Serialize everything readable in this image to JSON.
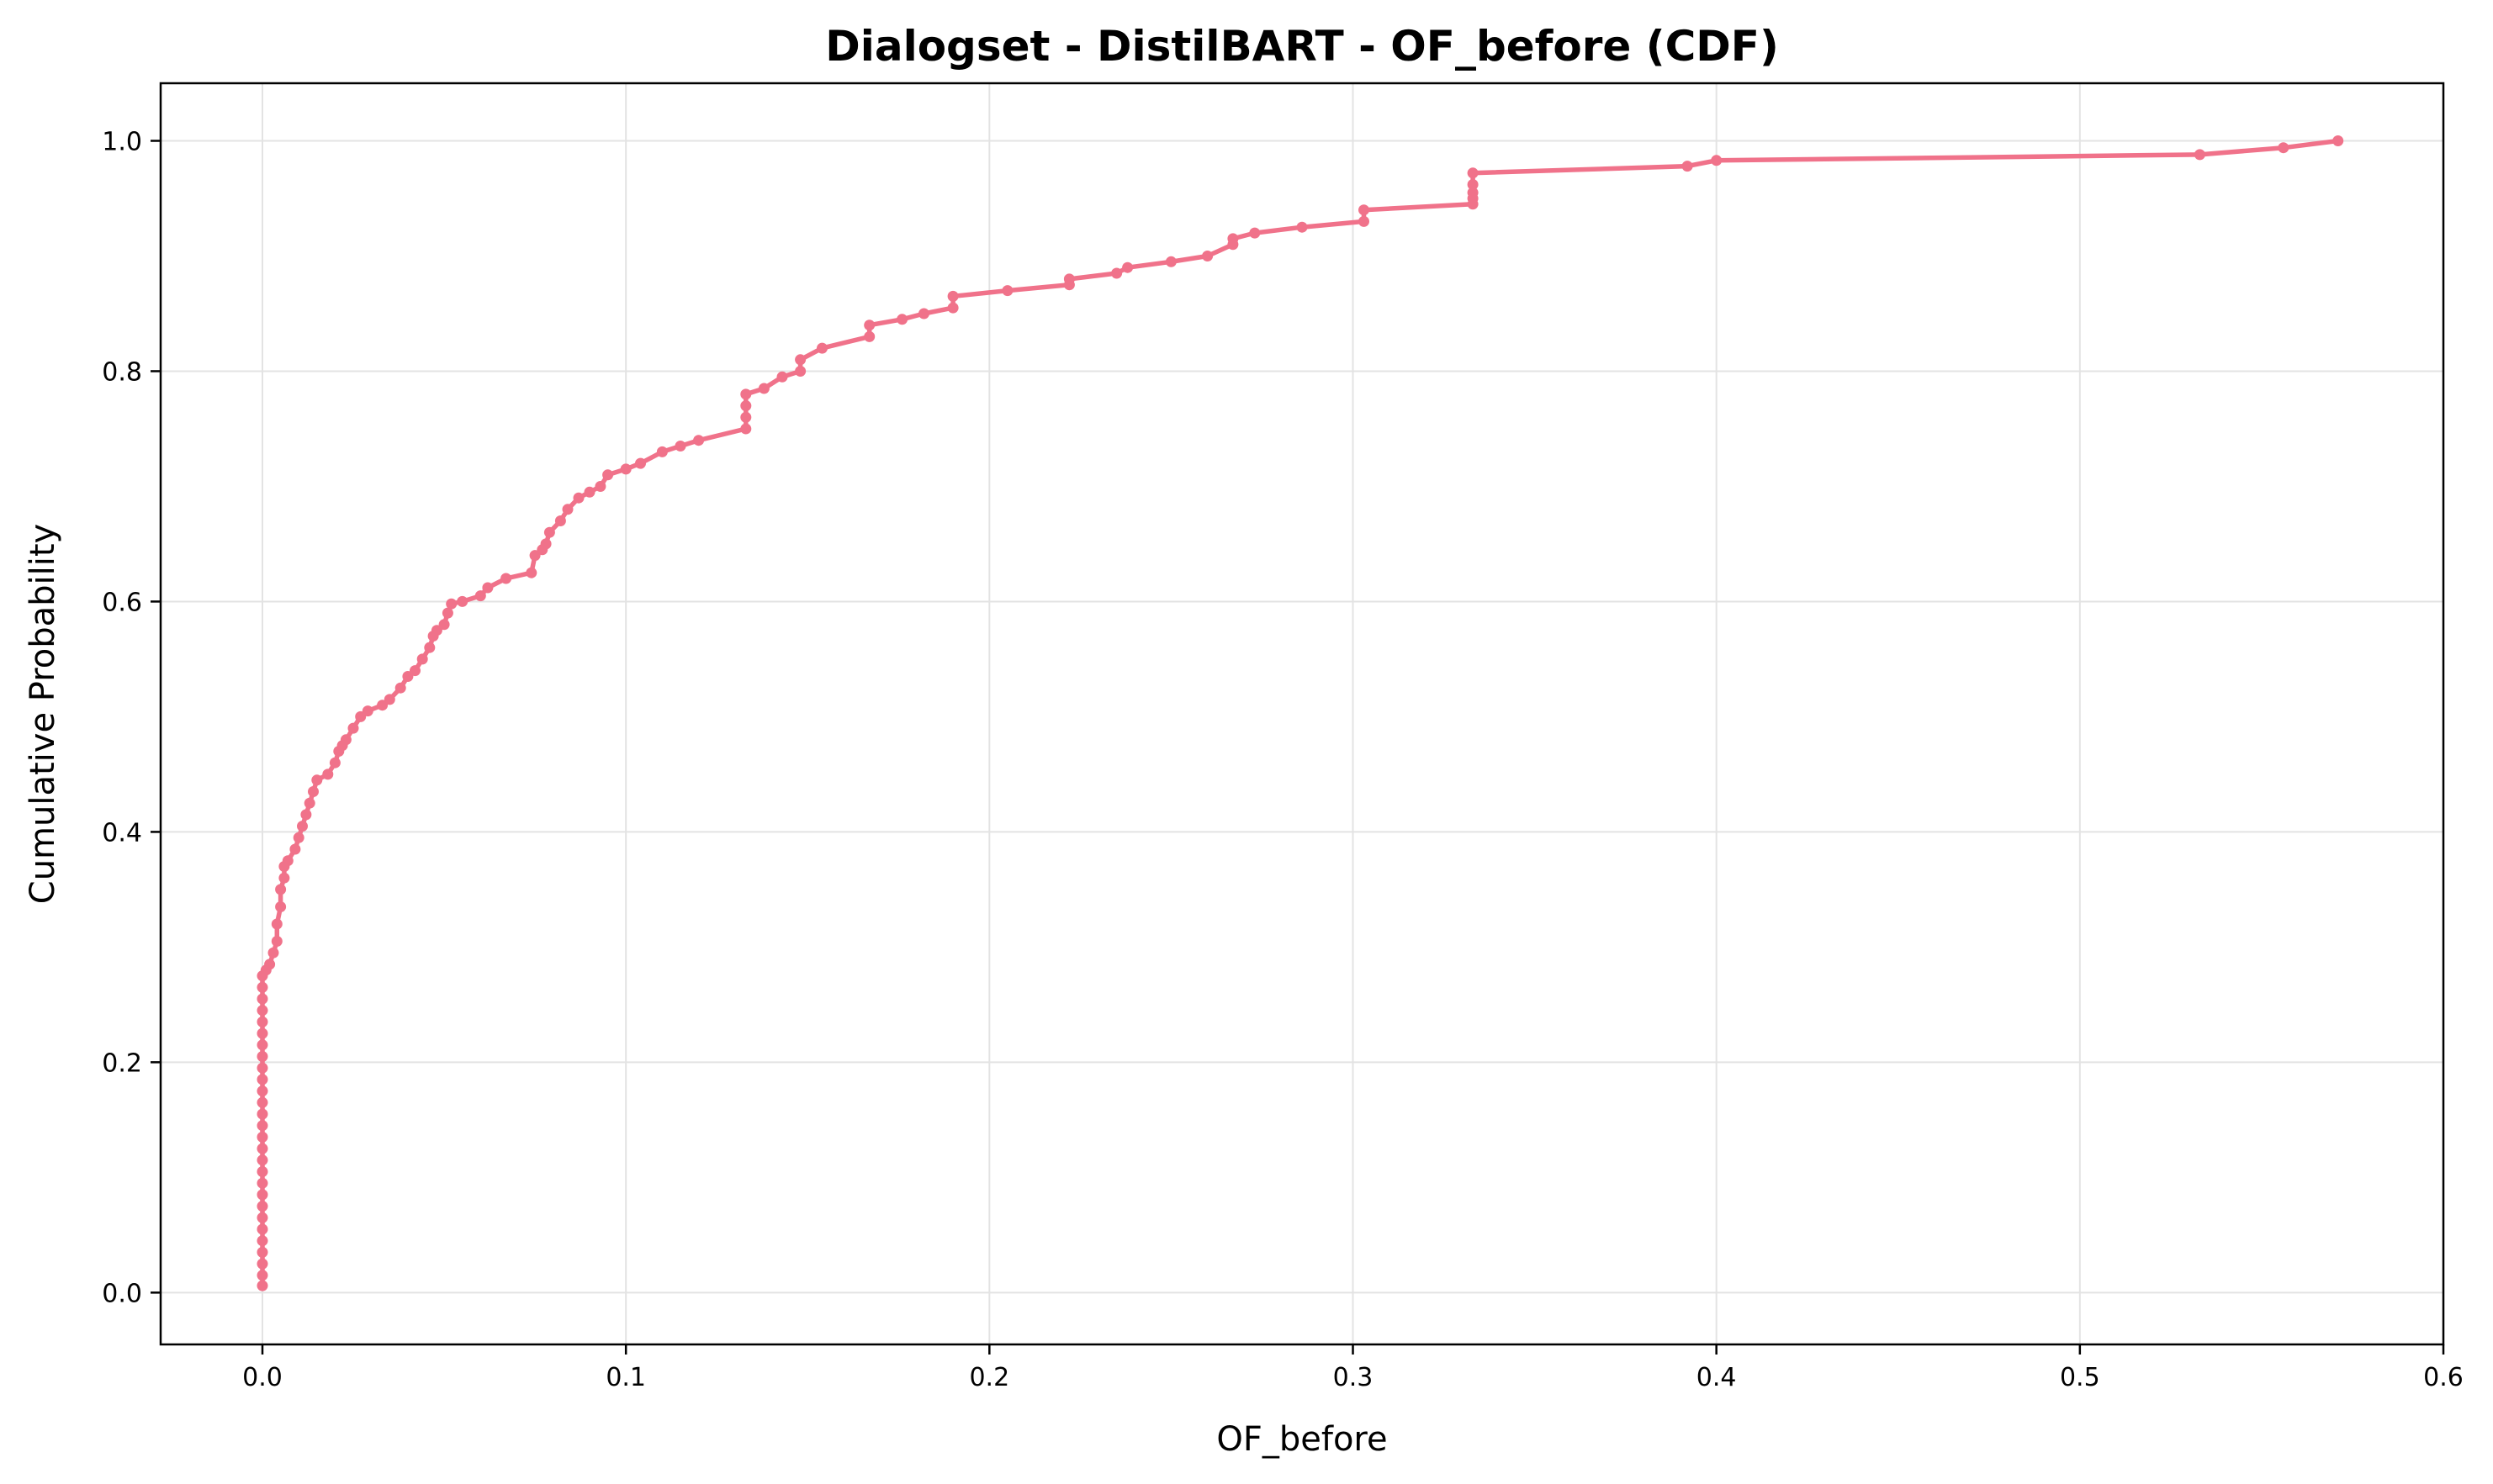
{
  "chart_data": {
    "type": "line",
    "title": "Dialogset - DistilBART - OF_before (CDF)",
    "xlabel": "OF_before",
    "ylabel": "Cumulative Probability",
    "xlim": [
      -0.028,
      0.6
    ],
    "ylim": [
      -0.045,
      1.05
    ],
    "xticks": [
      0.0,
      0.1,
      0.2,
      0.3,
      0.4,
      0.5,
      0.6
    ],
    "xtick_labels": [
      "0.0",
      "0.1",
      "0.2",
      "0.3",
      "0.4",
      "0.5",
      "0.6"
    ],
    "yticks": [
      0.0,
      0.2,
      0.4,
      0.6,
      0.8,
      1.0
    ],
    "ytick_labels": [
      "0.0",
      "0.2",
      "0.4",
      "0.6",
      "0.8",
      "1.0"
    ],
    "grid": true,
    "legend": "none",
    "line_color": "#f0728a",
    "series": [
      {
        "x": [
          0.0,
          0.0,
          0.0,
          0.0,
          0.0,
          0.0,
          0.0,
          0.0,
          0.0,
          0.0,
          0.0,
          0.0,
          0.0,
          0.0,
          0.0,
          0.0,
          0.0,
          0.0,
          0.0,
          0.0,
          0.0,
          0.0,
          0.0,
          0.0,
          0.0,
          0.0,
          0.0,
          0.0,
          0.001,
          0.002,
          0.003,
          0.004,
          0.004,
          0.005,
          0.005,
          0.006,
          0.006,
          0.007,
          0.009,
          0.01,
          0.011,
          0.012,
          0.013,
          0.014,
          0.015,
          0.018,
          0.02,
          0.021,
          0.022,
          0.023,
          0.025,
          0.027,
          0.029,
          0.033,
          0.035,
          0.038,
          0.04,
          0.042,
          0.044,
          0.046,
          0.047,
          0.048,
          0.05,
          0.051,
          0.052,
          0.055,
          0.06,
          0.062,
          0.067,
          0.074,
          0.075,
          0.077,
          0.078,
          0.079,
          0.082,
          0.084,
          0.087,
          0.09,
          0.093,
          0.095,
          0.1,
          0.104,
          0.11,
          0.115,
          0.12,
          0.133,
          0.133,
          0.133,
          0.133,
          0.138,
          0.143,
          0.148,
          0.148,
          0.154,
          0.167,
          0.167,
          0.176,
          0.182,
          0.19,
          0.19,
          0.205,
          0.222,
          0.222,
          0.235,
          0.238,
          0.25,
          0.26,
          0.267,
          0.267,
          0.273,
          0.286,
          0.303,
          0.303,
          0.333,
          0.333,
          0.333,
          0.333,
          0.333,
          0.392,
          0.4,
          0.533,
          0.556,
          0.571
        ],
        "y": [
          0.006,
          0.015,
          0.025,
          0.035,
          0.045,
          0.055,
          0.065,
          0.075,
          0.085,
          0.095,
          0.105,
          0.115,
          0.125,
          0.135,
          0.145,
          0.155,
          0.165,
          0.175,
          0.185,
          0.195,
          0.205,
          0.215,
          0.225,
          0.235,
          0.245,
          0.255,
          0.265,
          0.275,
          0.28,
          0.285,
          0.295,
          0.305,
          0.32,
          0.335,
          0.35,
          0.36,
          0.37,
          0.375,
          0.385,
          0.395,
          0.405,
          0.415,
          0.425,
          0.435,
          0.445,
          0.45,
          0.46,
          0.47,
          0.475,
          0.48,
          0.49,
          0.5,
          0.505,
          0.51,
          0.515,
          0.525,
          0.535,
          0.54,
          0.55,
          0.56,
          0.57,
          0.575,
          0.58,
          0.59,
          0.598,
          0.6,
          0.605,
          0.612,
          0.62,
          0.625,
          0.64,
          0.645,
          0.65,
          0.66,
          0.67,
          0.68,
          0.69,
          0.695,
          0.7,
          0.71,
          0.715,
          0.72,
          0.73,
          0.735,
          0.74,
          0.75,
          0.76,
          0.77,
          0.78,
          0.785,
          0.795,
          0.8,
          0.81,
          0.82,
          0.83,
          0.84,
          0.845,
          0.85,
          0.855,
          0.865,
          0.87,
          0.875,
          0.88,
          0.885,
          0.89,
          0.895,
          0.9,
          0.91,
          0.915,
          0.92,
          0.925,
          0.93,
          0.94,
          0.945,
          0.95,
          0.955,
          0.962,
          0.972,
          0.978,
          0.983,
          0.988,
          0.994,
          1.0
        ]
      }
    ]
  }
}
